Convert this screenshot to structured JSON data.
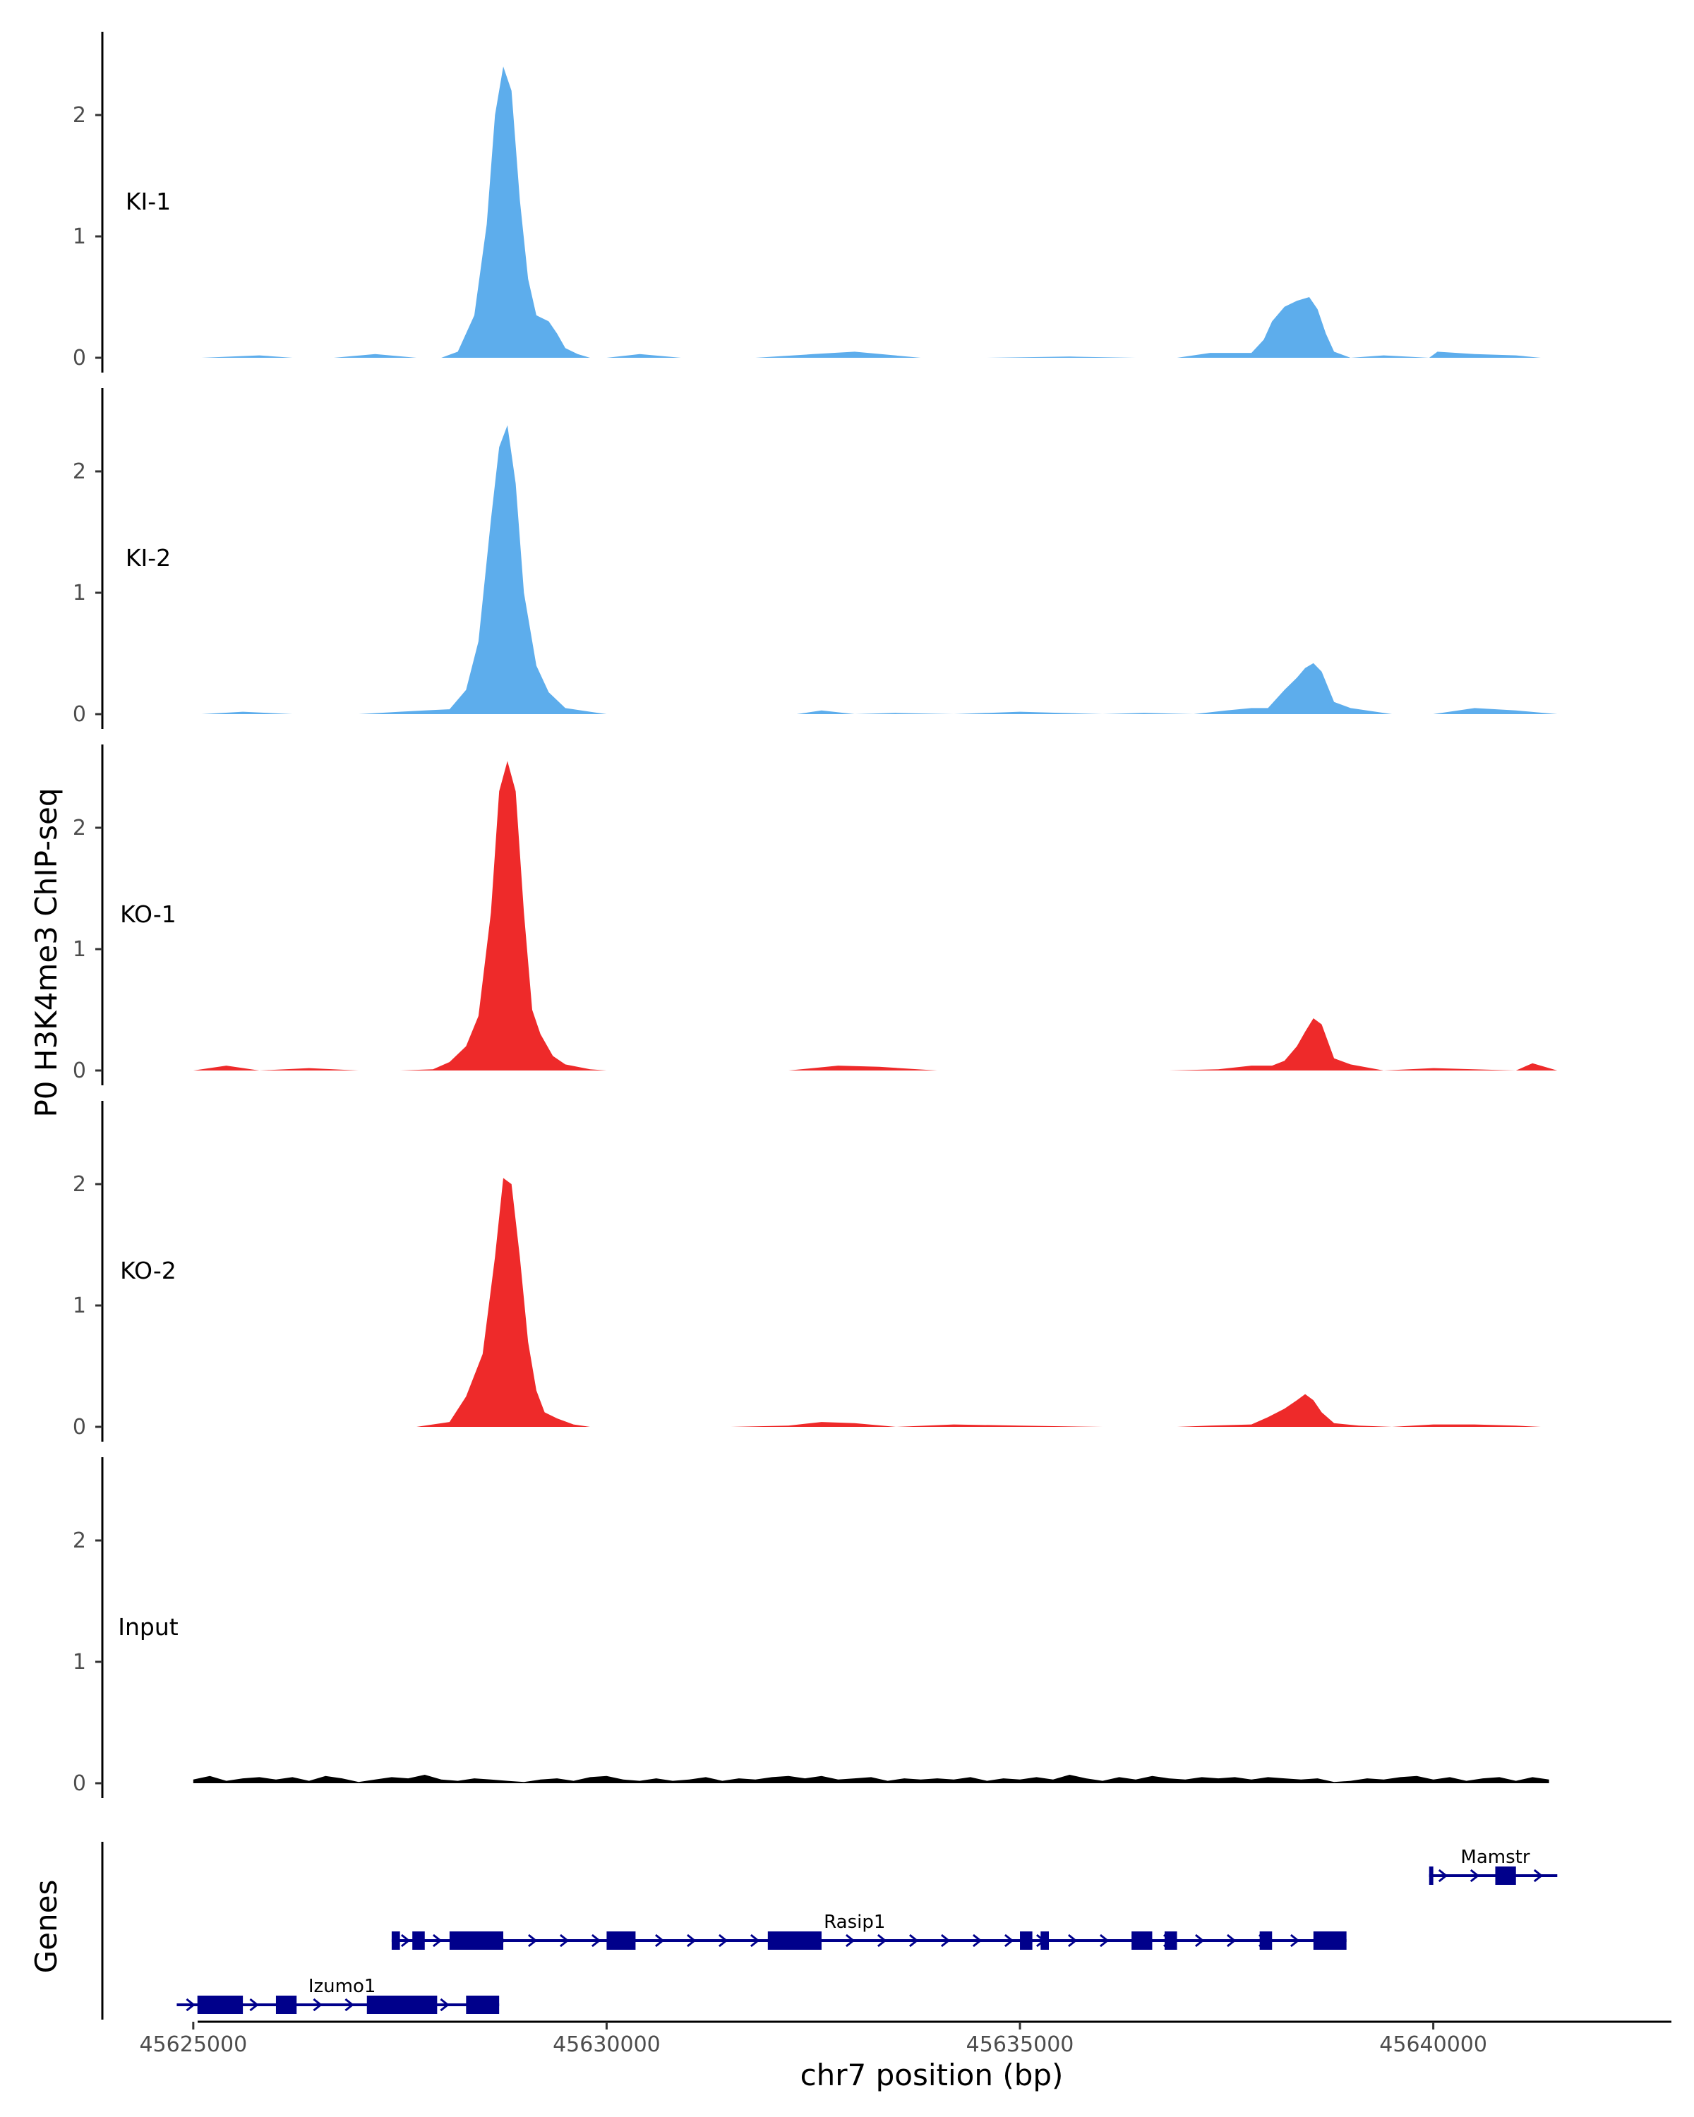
{
  "chart_data": {
    "type": "area",
    "ylabel": "P0 H3K4me3 ChIP-seq",
    "xlabel": "chr7 position (bp)",
    "xlim": [
      45623900,
      45642300
    ],
    "ylim": [
      0,
      2.6
    ],
    "y_ticks": [
      0,
      1,
      2
    ],
    "x_ticks": [
      45625000,
      45630000,
      45635000,
      45640000
    ],
    "x_tick_labels": [
      "45625000",
      "45630000",
      "45635000",
      "45640000"
    ],
    "tracks": [
      {
        "name": "KI-1",
        "color": "#5DADEC",
        "x": [
          45625100,
          45625800,
          45626200,
          45626700,
          45627200,
          45627700,
          45628000,
          45628200,
          45628400,
          45628550,
          45628650,
          45628750,
          45628850,
          45628950,
          45629050,
          45629150,
          45629300,
          45629400,
          45629500,
          45629650,
          45629800,
          45630000,
          45630400,
          45630900,
          45631800,
          45632500,
          45633000,
          45633800,
          45634600,
          45635600,
          45636400,
          45636900,
          45637300,
          45637800,
          45637950,
          45638050,
          45638200,
          45638350,
          45638500,
          45638600,
          45638700,
          45638800,
          45639000,
          45639400,
          45639950,
          45640050,
          45640500,
          45641000,
          45641300
        ],
        "y": [
          0,
          0.02,
          0,
          0,
          0.03,
          0,
          0,
          0.05,
          0.35,
          1.1,
          2.0,
          2.4,
          2.2,
          1.3,
          0.65,
          0.35,
          0.3,
          0.2,
          0.08,
          0.03,
          0,
          0,
          0.03,
          0,
          0,
          0.03,
          0.05,
          0,
          0,
          0.01,
          0,
          0,
          0.04,
          0.04,
          0.15,
          0.3,
          0.42,
          0.47,
          0.5,
          0.4,
          0.2,
          0.05,
          0,
          0.02,
          0,
          0.05,
          0.03,
          0.02,
          0
        ]
      },
      {
        "name": "KI-2",
        "color": "#5DADEC",
        "x": [
          45625100,
          45625600,
          45626200,
          45627000,
          45627500,
          45627800,
          45628100,
          45628300,
          45628450,
          45628600,
          45628700,
          45628800,
          45628900,
          45629000,
          45629150,
          45629300,
          45629500,
          45629800,
          45630000,
          45630500,
          45631500,
          45632300,
          45632600,
          45633000,
          45633500,
          45634200,
          45635000,
          45636000,
          45636500,
          45637100,
          45637500,
          45637800,
          45638000,
          45638200,
          45638350,
          45638450,
          45638550,
          45638650,
          45638800,
          45639000,
          45639500,
          45640000,
          45640500,
          45641000,
          45641500
        ],
        "y": [
          0,
          0.02,
          0,
          0,
          0.02,
          0.03,
          0.04,
          0.2,
          0.6,
          1.6,
          2.2,
          2.38,
          1.9,
          1.0,
          0.4,
          0.18,
          0.05,
          0.02,
          0,
          0,
          0,
          0,
          0.03,
          0,
          0.01,
          0,
          0.02,
          0,
          0.01,
          0,
          0.03,
          0.05,
          0.05,
          0.2,
          0.3,
          0.38,
          0.42,
          0.35,
          0.1,
          0.05,
          0,
          0,
          0.05,
          0.03,
          0
        ]
      },
      {
        "name": "KO-1",
        "color": "#EE2A2A",
        "x": [
          45625000,
          45625400,
          45625800,
          45626400,
          45627000,
          45627500,
          45627900,
          45628100,
          45628300,
          45628450,
          45628600,
          45628700,
          45628800,
          45628900,
          45629000,
          45629100,
          45629200,
          45629350,
          45629500,
          45629800,
          45630000,
          45630500,
          45631500,
          45632200,
          45632800,
          45633300,
          45634000,
          45635000,
          45636000,
          45636800,
          45637400,
          45637800,
          45638050,
          45638200,
          45638350,
          45638450,
          45638550,
          45638650,
          45638800,
          45639000,
          45639400,
          45640000,
          45641000,
          45641200,
          45641500
        ],
        "y": [
          0,
          0.04,
          0,
          0.02,
          0,
          0,
          0.01,
          0.07,
          0.2,
          0.45,
          1.3,
          2.3,
          2.55,
          2.3,
          1.3,
          0.5,
          0.3,
          0.12,
          0.05,
          0.01,
          0,
          0,
          0,
          0,
          0.04,
          0.03,
          0,
          0,
          0,
          0,
          0.01,
          0.04,
          0.04,
          0.08,
          0.2,
          0.32,
          0.43,
          0.38,
          0.1,
          0.05,
          0,
          0.02,
          0,
          0.06,
          0
        ]
      },
      {
        "name": "KO-2",
        "color": "#EE2A2A",
        "x": [
          45625000,
          45626000,
          45627000,
          45627700,
          45628100,
          45628300,
          45628500,
          45628650,
          45628750,
          45628850,
          45628950,
          45629050,
          45629150,
          45629250,
          45629400,
          45629600,
          45629800,
          45630000,
          45630800,
          45631500,
          45632200,
          45632600,
          45633000,
          45633500,
          45634200,
          45635000,
          45636000,
          45636900,
          45637300,
          45637800,
          45638000,
          45638200,
          45638350,
          45638450,
          45638550,
          45638650,
          45638800,
          45639100,
          45639500,
          45640000,
          45640500,
          45641000,
          45641300
        ],
        "y": [
          0,
          0,
          0,
          0,
          0.04,
          0.25,
          0.6,
          1.4,
          2.05,
          2.0,
          1.4,
          0.7,
          0.3,
          0.12,
          0.07,
          0.02,
          0,
          0,
          0,
          0,
          0.01,
          0.04,
          0.03,
          0,
          0.02,
          0.01,
          0,
          0,
          0.01,
          0.02,
          0.08,
          0.15,
          0.22,
          0.27,
          0.22,
          0.12,
          0.03,
          0.01,
          0,
          0.02,
          0.02,
          0.01,
          0
        ]
      },
      {
        "name": "Input",
        "color": "#000000",
        "x": [
          45625000,
          45625200,
          45625400,
          45625600,
          45625800,
          45626000,
          45626200,
          45626400,
          45626600,
          45626800,
          45627000,
          45627200,
          45627400,
          45627600,
          45627800,
          45628000,
          45628200,
          45628400,
          45628600,
          45628800,
          45629000,
          45629200,
          45629400,
          45629600,
          45629800,
          45630000,
          45630200,
          45630400,
          45630600,
          45630800,
          45631000,
          45631200,
          45631400,
          45631600,
          45631800,
          45632000,
          45632200,
          45632400,
          45632600,
          45632800,
          45633000,
          45633200,
          45633400,
          45633600,
          45633800,
          45634000,
          45634200,
          45634400,
          45634600,
          45634800,
          45635000,
          45635200,
          45635400,
          45635600,
          45635800,
          45636000,
          45636200,
          45636400,
          45636600,
          45636800,
          45637000,
          45637200,
          45637400,
          45637600,
          45637800,
          45638000,
          45638200,
          45638400,
          45638600,
          45638800,
          45639000,
          45639200,
          45639400,
          45639600,
          45639800,
          45640000,
          45640200,
          45640400,
          45640600,
          45640800,
          45641000,
          45641200,
          45641400
        ],
        "y": [
          0.03,
          0.06,
          0.02,
          0.04,
          0.05,
          0.03,
          0.05,
          0.02,
          0.06,
          0.04,
          0.01,
          0.03,
          0.05,
          0.04,
          0.07,
          0.03,
          0.02,
          0.04,
          0.03,
          0.02,
          0.01,
          0.03,
          0.04,
          0.02,
          0.05,
          0.06,
          0.03,
          0.02,
          0.04,
          0.02,
          0.03,
          0.05,
          0.02,
          0.04,
          0.03,
          0.05,
          0.06,
          0.04,
          0.06,
          0.03,
          0.04,
          0.05,
          0.02,
          0.04,
          0.03,
          0.04,
          0.03,
          0.05,
          0.02,
          0.04,
          0.03,
          0.05,
          0.03,
          0.07,
          0.04,
          0.02,
          0.05,
          0.03,
          0.06,
          0.04,
          0.03,
          0.05,
          0.04,
          0.05,
          0.03,
          0.05,
          0.04,
          0.03,
          0.04,
          0.01,
          0.02,
          0.04,
          0.03,
          0.05,
          0.06,
          0.03,
          0.05,
          0.02,
          0.04,
          0.05,
          0.02,
          0.05,
          0.03
        ]
      }
    ],
    "genes_panel": {
      "label": "Genes",
      "color": "#00008B",
      "genes": [
        {
          "name": "Mamstr",
          "row": 0,
          "start": 45639950,
          "end": 45641500,
          "strand": "+",
          "exons": [
            [
              45639950,
              45640000
            ],
            [
              45640750,
              45641000
            ]
          ],
          "label_pos": 45640750
        },
        {
          "name": "Rasip1",
          "row": 1,
          "start": 45627400,
          "end": 45638950,
          "strand": "+",
          "exons": [
            [
              45627400,
              45627500
            ],
            [
              45627650,
              45627800
            ],
            [
              45628100,
              45628750
            ],
            [
              45630000,
              45630350
            ],
            [
              45631950,
              45632600
            ],
            [
              45635000,
              45635150
            ],
            [
              45635250,
              45635350
            ],
            [
              45636350,
              45636600
            ],
            [
              45636750,
              45636900
            ],
            [
              45637900,
              45638050
            ],
            [
              45638550,
              45638950
            ]
          ],
          "label_pos": 45633000
        },
        {
          "name": "Izumo1",
          "row": 2,
          "start": 45624800,
          "end": 45628700,
          "strand": "+",
          "exons": [
            [
              45625050,
              45625600
            ],
            [
              45626000,
              45626250
            ],
            [
              45627100,
              45627950
            ],
            [
              45628300,
              45628700
            ]
          ],
          "label_pos": 45626800
        }
      ]
    }
  }
}
